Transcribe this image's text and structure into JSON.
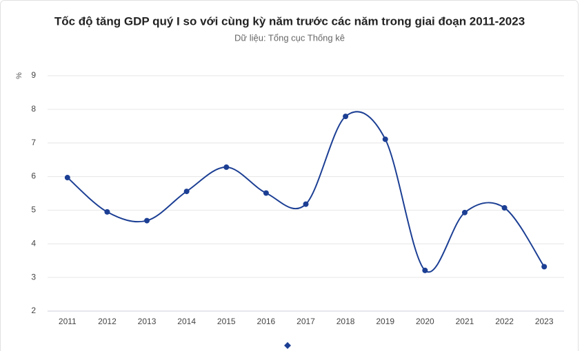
{
  "chart_data": {
    "type": "line",
    "title": "Tốc độ tăng GDP quý I so với cùng kỳ năm trước các năm trong giai đoạn 2011-2023",
    "subtitle": "Dữ liệu: Tổng cục Thống kê",
    "y_label": "%",
    "categories": [
      "2011",
      "2012",
      "2013",
      "2014",
      "2015",
      "2016",
      "2017",
      "2018",
      "2019",
      "2020",
      "2021",
      "2022",
      "2023"
    ],
    "values": [
      5.97,
      4.95,
      4.69,
      5.56,
      6.28,
      5.51,
      5.18,
      7.79,
      7.11,
      3.21,
      4.93,
      5.07,
      3.32
    ],
    "color": "#1c3f94",
    "smooth": true,
    "ylim": [
      2,
      9
    ],
    "yticks": [
      2,
      3,
      4,
      5,
      6,
      7,
      8,
      9
    ],
    "grid": true
  }
}
